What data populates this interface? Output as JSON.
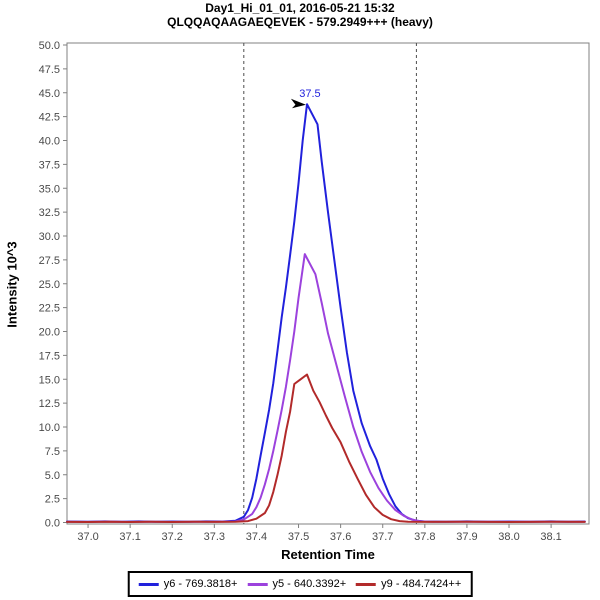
{
  "chart_data": {
    "type": "line",
    "title": "Day1_Hi_01_01, 2016-05-21 15:32",
    "subtitle": "QLQQAQAAGAEQEVEK - 579.2949+++ (heavy)",
    "xlabel": "Retention Time",
    "ylabel": "Intensity 10^3",
    "xlim": [
      36.95,
      38.19
    ],
    "ylim": [
      0,
      50
    ],
    "x_ticks": [
      37.0,
      37.1,
      37.2,
      37.3,
      37.4,
      37.5,
      37.6,
      37.7,
      37.8,
      37.9,
      38.0,
      38.1
    ],
    "y_ticks": [
      0.0,
      2.5,
      5.0,
      7.5,
      10.0,
      12.5,
      15.0,
      17.5,
      20.0,
      22.5,
      25.0,
      27.5,
      30.0,
      32.5,
      35.0,
      37.5,
      40.0,
      42.5,
      45.0,
      47.5,
      50.0
    ],
    "grid": false,
    "legend_position": "bottom",
    "integration_boundaries": [
      37.37,
      37.78
    ],
    "peak_annotation": {
      "label": "37.5",
      "rt": 37.52,
      "intensity": 43.8
    },
    "colors": {
      "boundary": "#4d4d4d",
      "frame": "#808080",
      "tick_text": "#4a4a4a"
    },
    "series": [
      {
        "name": "y6 - 769.3818+",
        "color": "#2121dc",
        "points": [
          [
            36.95,
            0.1
          ],
          [
            37.0,
            0.08
          ],
          [
            37.04,
            0.12
          ],
          [
            37.08,
            0.08
          ],
          [
            37.12,
            0.11
          ],
          [
            37.16,
            0.08
          ],
          [
            37.2,
            0.1
          ],
          [
            37.24,
            0.08
          ],
          [
            37.28,
            0.11
          ],
          [
            37.32,
            0.1
          ],
          [
            37.35,
            0.18
          ],
          [
            37.37,
            0.6
          ],
          [
            37.38,
            1.3
          ],
          [
            37.39,
            2.6
          ],
          [
            37.4,
            4.6
          ],
          [
            37.41,
            7.0
          ],
          [
            37.42,
            9.4
          ],
          [
            37.43,
            11.8
          ],
          [
            37.44,
            14.6
          ],
          [
            37.45,
            18.0
          ],
          [
            37.46,
            21.5
          ],
          [
            37.47,
            24.6
          ],
          [
            37.48,
            28.0
          ],
          [
            37.49,
            31.5
          ],
          [
            37.5,
            35.5
          ],
          [
            37.51,
            40.0
          ],
          [
            37.52,
            43.8
          ],
          [
            37.545,
            41.7
          ],
          [
            37.555,
            37.8
          ],
          [
            37.57,
            32.5
          ],
          [
            37.585,
            27.5
          ],
          [
            37.6,
            22.5
          ],
          [
            37.615,
            17.8
          ],
          [
            37.63,
            13.8
          ],
          [
            37.65,
            10.4
          ],
          [
            37.67,
            8.0
          ],
          [
            37.685,
            6.6
          ],
          [
            37.7,
            4.6
          ],
          [
            37.715,
            3.0
          ],
          [
            37.73,
            1.7
          ],
          [
            37.745,
            0.9
          ],
          [
            37.76,
            0.45
          ],
          [
            37.78,
            0.18
          ],
          [
            37.8,
            0.1
          ],
          [
            37.85,
            0.08
          ],
          [
            37.9,
            0.11
          ],
          [
            37.95,
            0.08
          ],
          [
            38.0,
            0.1
          ],
          [
            38.05,
            0.08
          ],
          [
            38.1,
            0.11
          ],
          [
            38.14,
            0.08
          ],
          [
            38.18,
            0.1
          ]
        ]
      },
      {
        "name": "y5 - 640.3392+",
        "color": "#9c42dd",
        "points": [
          [
            36.95,
            0.07
          ],
          [
            37.0,
            0.06
          ],
          [
            37.05,
            0.09
          ],
          [
            37.1,
            0.06
          ],
          [
            37.15,
            0.08
          ],
          [
            37.2,
            0.06
          ],
          [
            37.25,
            0.08
          ],
          [
            37.3,
            0.07
          ],
          [
            37.35,
            0.1
          ],
          [
            37.37,
            0.3
          ],
          [
            37.39,
            0.9
          ],
          [
            37.4,
            1.6
          ],
          [
            37.41,
            2.6
          ],
          [
            37.42,
            4.0
          ],
          [
            37.43,
            5.6
          ],
          [
            37.44,
            7.5
          ],
          [
            37.45,
            9.6
          ],
          [
            37.46,
            11.8
          ],
          [
            37.47,
            14.2
          ],
          [
            37.48,
            17.0
          ],
          [
            37.49,
            20.0
          ],
          [
            37.5,
            23.5
          ],
          [
            37.515,
            28.1
          ],
          [
            37.54,
            26.0
          ],
          [
            37.555,
            23.0
          ],
          [
            37.57,
            19.8
          ],
          [
            37.59,
            16.5
          ],
          [
            37.61,
            13.2
          ],
          [
            37.63,
            10.0
          ],
          [
            37.65,
            7.4
          ],
          [
            37.67,
            5.3
          ],
          [
            37.69,
            3.6
          ],
          [
            37.71,
            2.3
          ],
          [
            37.73,
            1.3
          ],
          [
            37.75,
            0.7
          ],
          [
            37.77,
            0.3
          ],
          [
            37.79,
            0.12
          ],
          [
            37.82,
            0.08
          ],
          [
            37.9,
            0.07
          ],
          [
            38.0,
            0.08
          ],
          [
            38.1,
            0.07
          ],
          [
            38.18,
            0.08
          ]
        ]
      },
      {
        "name": "y9 - 484.7424++",
        "color": "#b22a2a",
        "points": [
          [
            36.95,
            0.06
          ],
          [
            37.0,
            0.05
          ],
          [
            37.05,
            0.08
          ],
          [
            37.1,
            0.05
          ],
          [
            37.15,
            0.07
          ],
          [
            37.2,
            0.05
          ],
          [
            37.25,
            0.07
          ],
          [
            37.3,
            0.06
          ],
          [
            37.35,
            0.08
          ],
          [
            37.38,
            0.15
          ],
          [
            37.4,
            0.4
          ],
          [
            37.42,
            1.0
          ],
          [
            37.43,
            1.8
          ],
          [
            37.44,
            3.2
          ],
          [
            37.45,
            5.0
          ],
          [
            37.46,
            7.0
          ],
          [
            37.47,
            9.5
          ],
          [
            37.48,
            11.6
          ],
          [
            37.49,
            14.5
          ],
          [
            37.505,
            15.0
          ],
          [
            37.52,
            15.5
          ],
          [
            37.535,
            13.8
          ],
          [
            37.55,
            12.6
          ],
          [
            37.565,
            11.2
          ],
          [
            37.58,
            9.9
          ],
          [
            37.6,
            8.4
          ],
          [
            37.62,
            6.4
          ],
          [
            37.64,
            4.6
          ],
          [
            37.66,
            2.9
          ],
          [
            37.68,
            1.6
          ],
          [
            37.7,
            0.8
          ],
          [
            37.72,
            0.35
          ],
          [
            37.74,
            0.15
          ],
          [
            37.76,
            0.08
          ],
          [
            37.8,
            0.06
          ],
          [
            37.9,
            0.07
          ],
          [
            38.0,
            0.05
          ],
          [
            38.1,
            0.07
          ],
          [
            38.18,
            0.06
          ]
        ]
      }
    ]
  }
}
